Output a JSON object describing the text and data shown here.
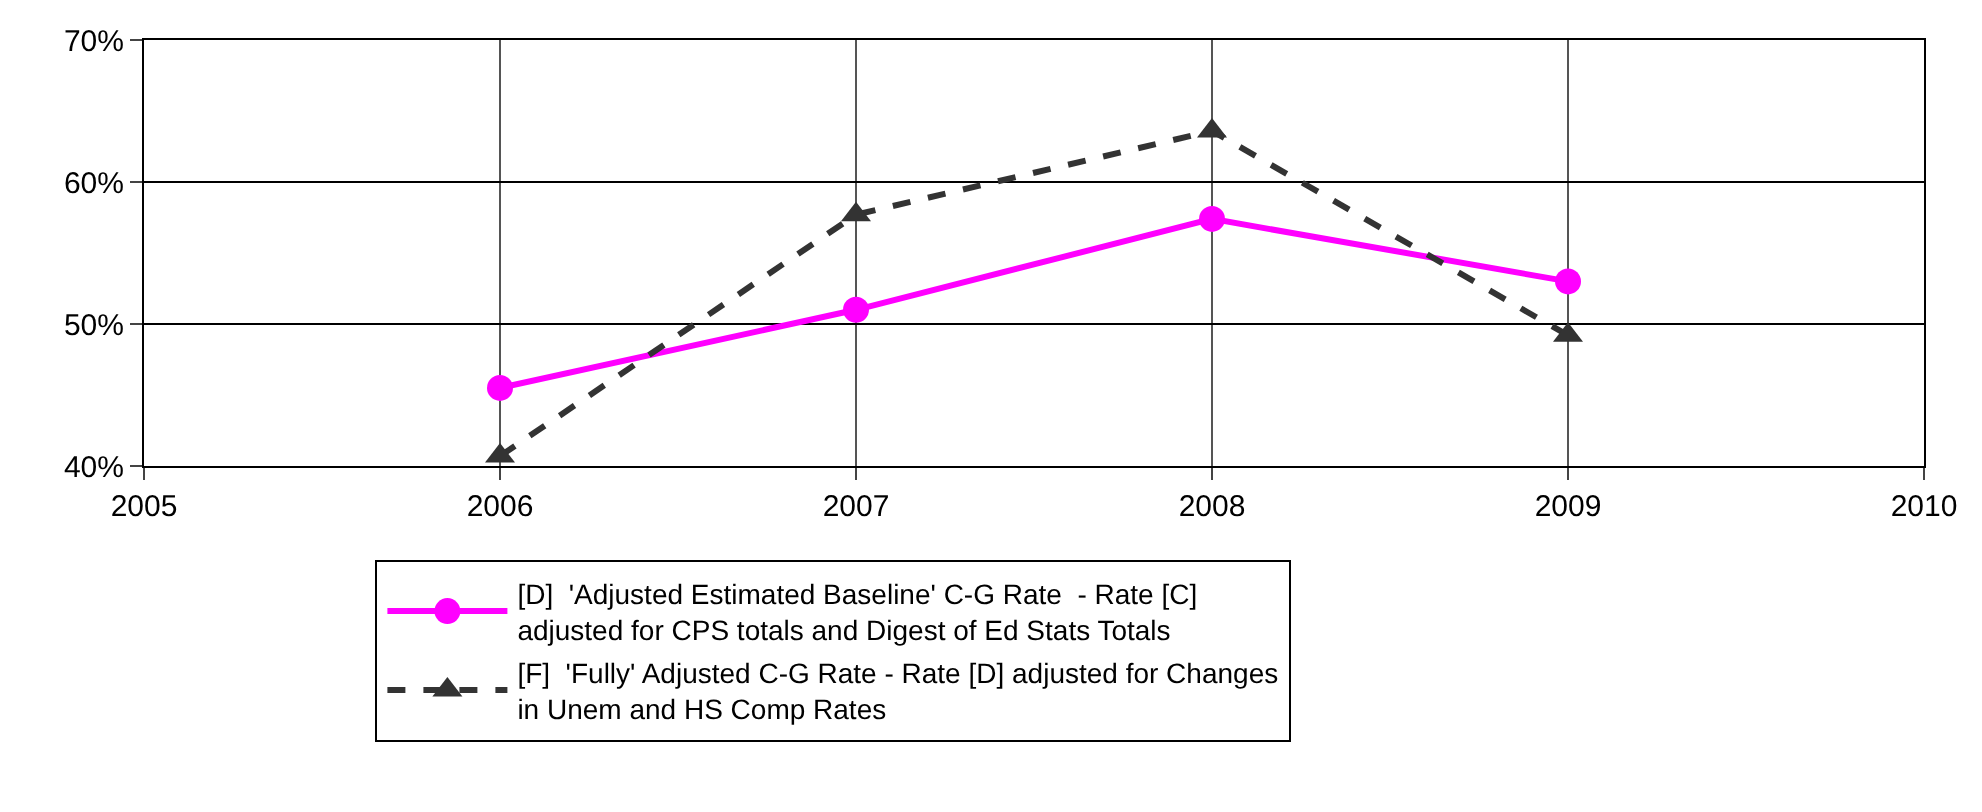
{
  "chart_data": {
    "type": "line",
    "x": [
      2006,
      2007,
      2008,
      2009
    ],
    "series": [
      {
        "name": "[D]  'Adjusted Estimated Baseline' C-G Rate  - Rate [C] adjusted for CPS totals and Digest of Ed Stats Totals",
        "color": "#ff00ff",
        "values": [
          45.5,
          51,
          57.4,
          53
        ],
        "marker": "circle",
        "line_style": "solid"
      },
      {
        "name": "[F]  'Fully' Adjusted C-G Rate - Rate [D] adjusted for Changes in Unem and HS Comp Rates",
        "color": "#333333",
        "values": [
          40.7,
          57.7,
          63.6,
          49.2
        ],
        "marker": "triangle",
        "line_style": "dashed"
      }
    ],
    "xlim": [
      2005,
      2010
    ],
    "xticks": [
      2005,
      2006,
      2007,
      2008,
      2009,
      2010
    ],
    "ylim": [
      40,
      70
    ],
    "yticks": [
      {
        "value": 40,
        "label": "40%"
      },
      {
        "value": 50,
        "label": "50%"
      },
      {
        "value": 60,
        "label": "60%"
      },
      {
        "value": 70,
        "label": "70%"
      }
    ],
    "grid": true,
    "legend": "bottom"
  }
}
